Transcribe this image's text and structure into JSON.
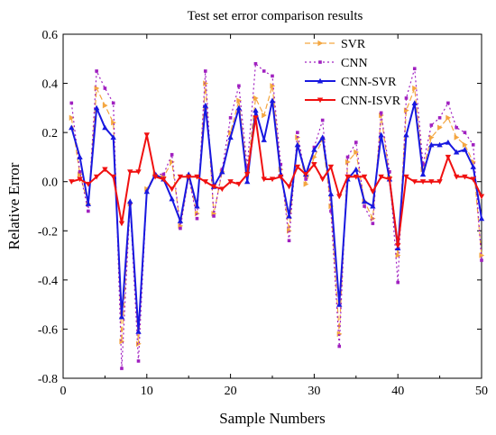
{
  "chart_data": {
    "type": "line",
    "title": "Test set error comparison results",
    "xlabel": "Sample Numbers",
    "ylabel": "Relative Error",
    "xlim": [
      0,
      50
    ],
    "ylim": [
      -0.8,
      0.6
    ],
    "xticks": [
      0,
      10,
      20,
      30,
      40,
      50
    ],
    "xtick_labels": [
      "0",
      "10",
      "20",
      "30",
      "40",
      "50"
    ],
    "yticks": [
      -0.8,
      -0.6,
      -0.4,
      -0.2,
      0.0,
      0.2,
      0.4,
      0.6
    ],
    "ytick_labels": [
      "-0.8",
      "-0.6",
      "-0.4",
      "-0.2",
      "0.0",
      "0.2",
      "0.4",
      "0.6"
    ],
    "grid": false,
    "legend_position": "top-right",
    "x": [
      1,
      2,
      3,
      4,
      5,
      6,
      7,
      8,
      9,
      10,
      11,
      12,
      13,
      14,
      15,
      16,
      17,
      18,
      19,
      20,
      21,
      22,
      23,
      24,
      25,
      26,
      27,
      28,
      29,
      30,
      31,
      32,
      33,
      34,
      35,
      36,
      37,
      38,
      39,
      40,
      41,
      42,
      43,
      44,
      45,
      46,
      47,
      48,
      49,
      50
    ],
    "series": [
      {
        "name": "SVR",
        "color": "#f4a640",
        "dash": "6,3",
        "marker": "tri-right",
        "values": [
          0.26,
          0.03,
          -0.09,
          0.38,
          0.31,
          0.24,
          -0.65,
          -0.09,
          -0.66,
          -0.03,
          0.03,
          0.02,
          0.08,
          -0.18,
          0.02,
          -0.13,
          0.4,
          -0.13,
          0.04,
          0.2,
          0.33,
          0.04,
          0.34,
          0.27,
          0.39,
          0.05,
          -0.2,
          0.18,
          -0.01,
          0.1,
          0.17,
          -0.1,
          -0.62,
          0.08,
          0.12,
          -0.08,
          -0.15,
          0.27,
          0.02,
          -0.3,
          0.29,
          0.38,
          0.05,
          0.18,
          0.22,
          0.26,
          0.18,
          0.15,
          0.08,
          -0.3
        ]
      },
      {
        "name": "CNN",
        "color": "#a020c0",
        "dash": "2,3",
        "marker": "square",
        "values": [
          0.32,
          0.04,
          -0.12,
          0.45,
          0.38,
          0.32,
          -0.76,
          -0.09,
          -0.73,
          -0.04,
          0.03,
          0.03,
          0.11,
          -0.19,
          0.02,
          -0.15,
          0.45,
          -0.14,
          0.05,
          0.26,
          0.39,
          0.06,
          0.48,
          0.45,
          0.43,
          0.07,
          -0.24,
          0.2,
          0.01,
          0.14,
          0.25,
          -0.12,
          -0.67,
          0.1,
          0.16,
          -0.1,
          -0.17,
          0.28,
          0.04,
          -0.41,
          0.34,
          0.46,
          0.07,
          0.23,
          0.26,
          0.32,
          0.22,
          0.2,
          0.15,
          -0.32
        ]
      },
      {
        "name": "CNN-SVR",
        "color": "#1818e0",
        "dash": "",
        "marker": "tri-up",
        "values": [
          0.22,
          0.1,
          -0.09,
          0.3,
          0.22,
          0.18,
          -0.55,
          -0.08,
          -0.61,
          -0.04,
          0.03,
          0.01,
          -0.07,
          -0.16,
          0.03,
          -0.1,
          0.31,
          -0.02,
          0.04,
          0.18,
          0.3,
          0.0,
          0.29,
          0.17,
          0.33,
          0.03,
          -0.14,
          0.15,
          0.03,
          0.13,
          0.18,
          -0.05,
          -0.5,
          0.01,
          0.05,
          -0.08,
          -0.1,
          0.19,
          0.01,
          -0.27,
          0.19,
          0.32,
          0.03,
          0.15,
          0.15,
          0.16,
          0.12,
          0.13,
          0.06,
          -0.15
        ]
      },
      {
        "name": "CNN-ISVR",
        "color": "#f01010",
        "dash": "",
        "marker": "tri-down",
        "values": [
          0.0,
          0.01,
          -0.01,
          0.02,
          0.05,
          0.02,
          -0.17,
          0.04,
          0.04,
          0.19,
          0.02,
          0.01,
          -0.03,
          0.02,
          0.02,
          0.02,
          0.0,
          -0.02,
          -0.03,
          0.0,
          -0.01,
          0.03,
          0.26,
          0.01,
          0.01,
          0.02,
          -0.02,
          0.06,
          0.03,
          0.07,
          0.01,
          0.06,
          -0.06,
          0.02,
          0.02,
          0.02,
          -0.04,
          0.02,
          0.01,
          -0.26,
          0.02,
          0.0,
          0.0,
          0.0,
          0.0,
          0.1,
          0.02,
          0.02,
          0.01,
          -0.06
        ]
      }
    ]
  }
}
